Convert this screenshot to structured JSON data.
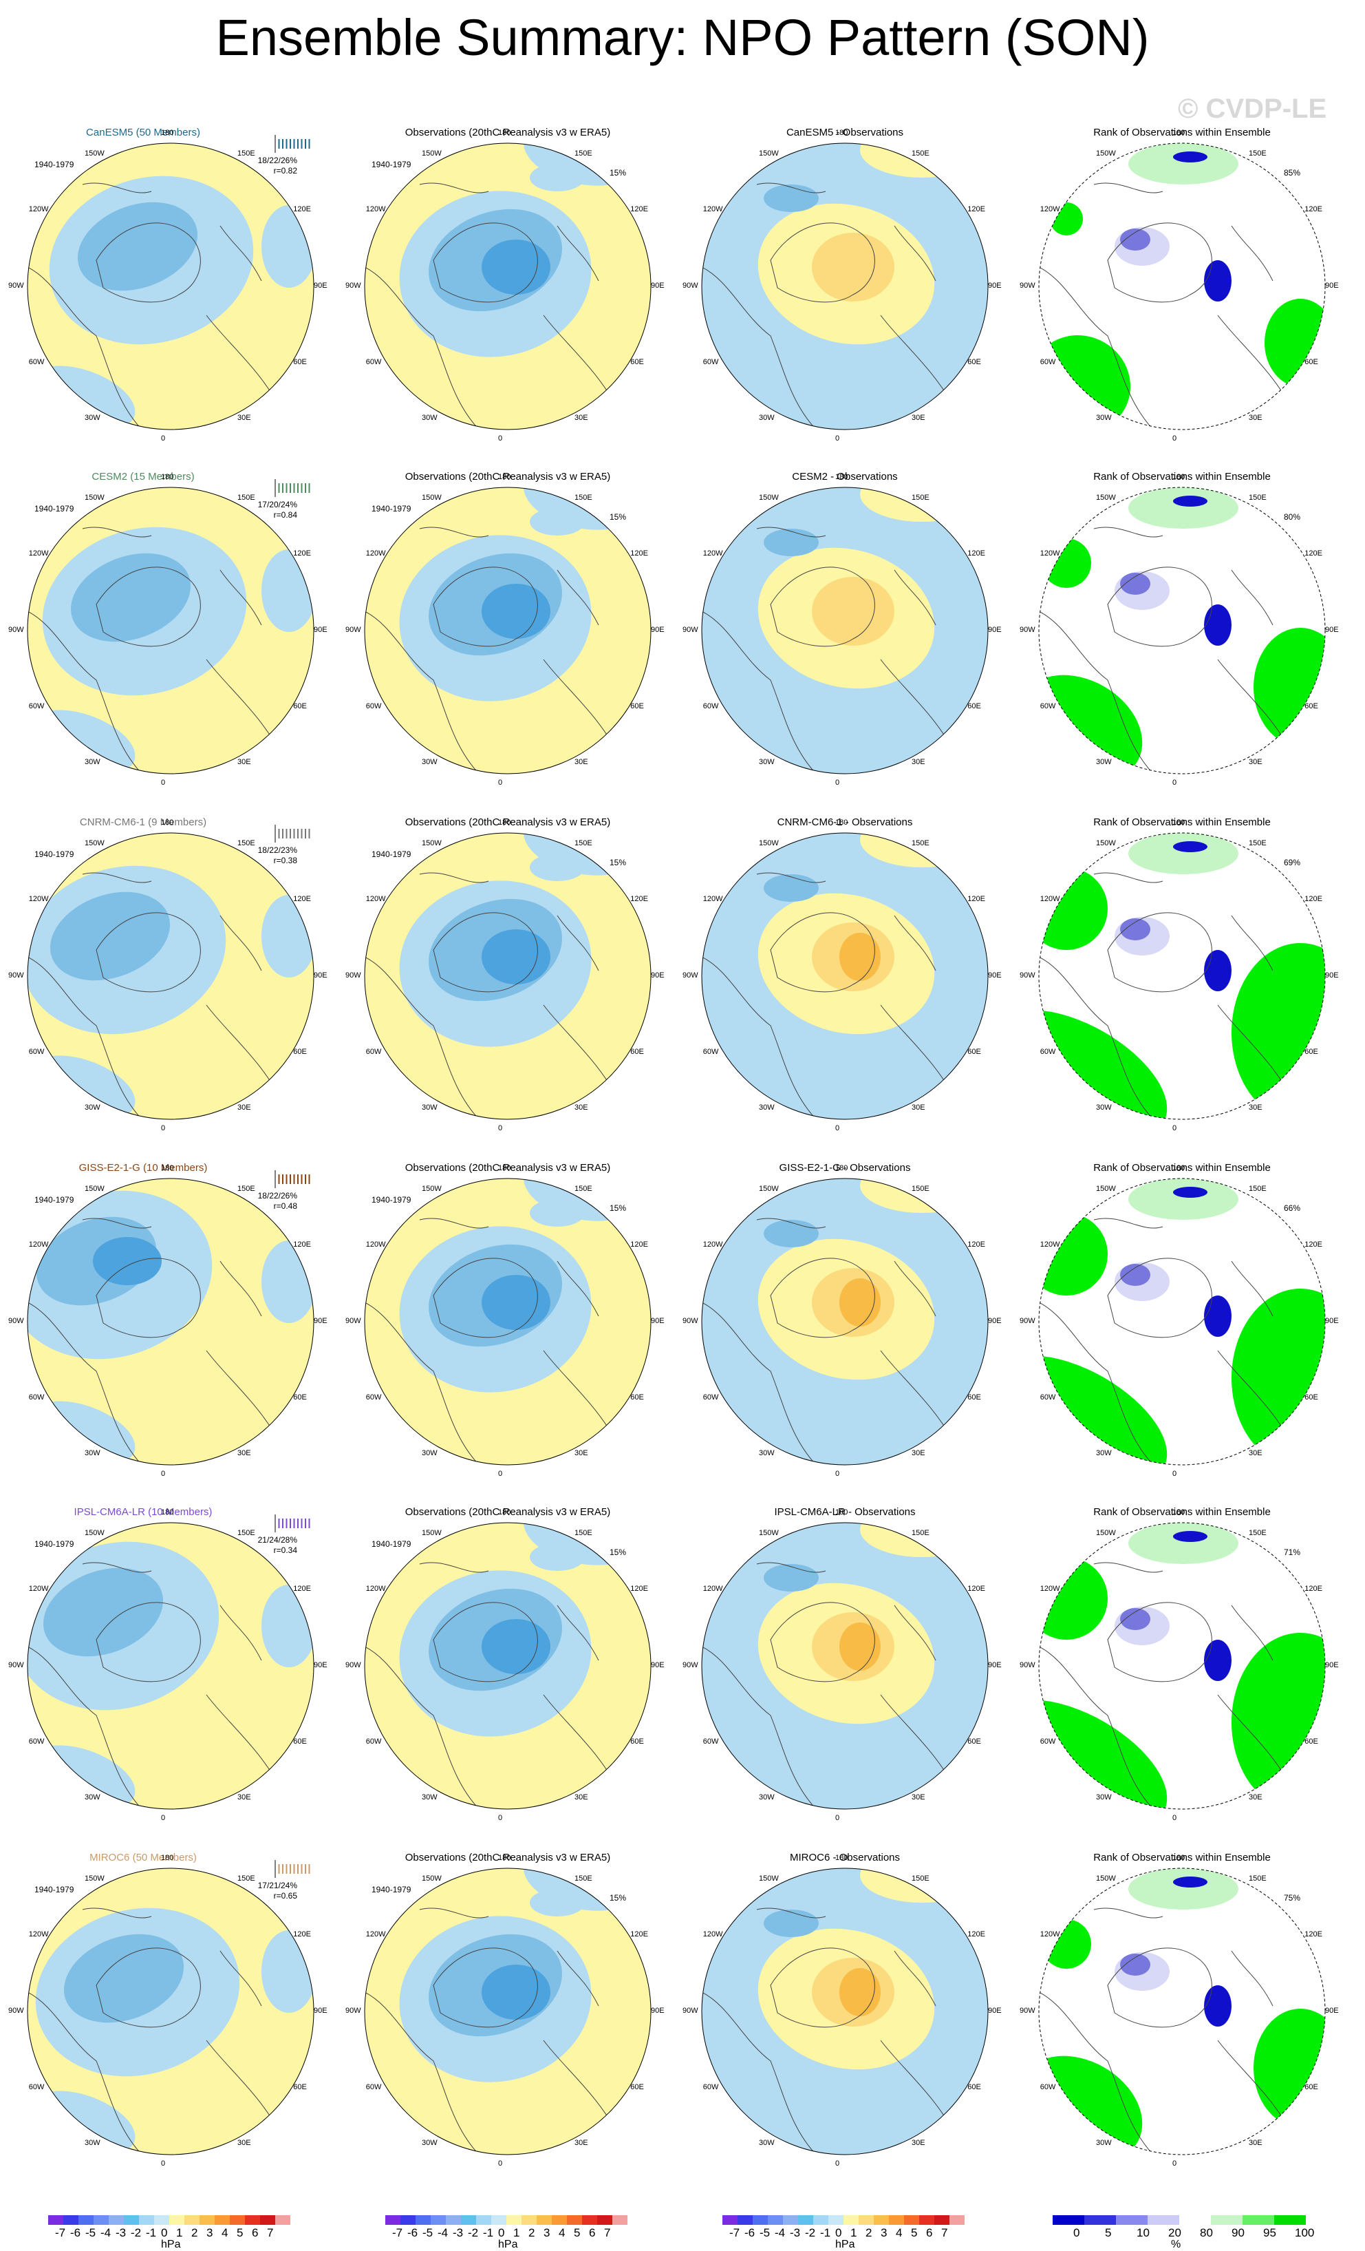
{
  "title": "Ensemble Summary: NPO Pattern (SON)",
  "watermark": "© CVDP-LE",
  "colors": {
    "yellow": "#fdf6a4",
    "lightblue": "#b3dbf2",
    "blue": "#7fbfe6",
    "midblue": "#4da3dd",
    "lightorange": "#fbdb7d",
    "orange": "#f8bb45",
    "green": "#00ee00",
    "lightgreen": "#c5f5c5",
    "paleblue": "#d8d8f7",
    "rankblue": "#1010cc",
    "midrank": "#7777dd"
  },
  "lon_labels": [
    "180",
    "150E",
    "120E",
    "90E",
    "60E",
    "30E",
    "0",
    "30W",
    "60W",
    "90W",
    "120W",
    "150W"
  ],
  "rows": [
    {
      "model": "CanESM5 (50 Members)",
      "model_color": "#1d6a8a",
      "period": "1940-1979",
      "stats": "18/22/26%",
      "r": "r=0.82",
      "obs_title": "Observations (20thC Reanalysis v3 w ERA5)",
      "obs_pct": "15%",
      "diff_title": "CanESM5 - Observations",
      "rank_title": "Rank of Observations within Ensemble",
      "rank_pct": "85%"
    },
    {
      "model": "CESM2 (15 Members)",
      "model_color": "#4e8a5e",
      "period": "1940-1979",
      "stats": "17/20/24%",
      "r": "r=0.84",
      "obs_title": "Observations (20thC Reanalysis v3 w ERA5)",
      "obs_pct": "15%",
      "diff_title": "CESM2 - Observations",
      "rank_title": "Rank of Observations within Ensemble",
      "rank_pct": "80%"
    },
    {
      "model": "CNRM-CM6-1 (9 Members)",
      "model_color": "#777777",
      "period": "1940-1979",
      "stats": "18/22/23%",
      "r": "r=0.38",
      "obs_title": "Observations (20thC Reanalysis v3 w ERA5)",
      "obs_pct": "15%",
      "diff_title": "CNRM-CM6-1 - Observations",
      "rank_title": "Rank of Observations within Ensemble",
      "rank_pct": "69%"
    },
    {
      "model": "GISS-E2-1-G (10 Members)",
      "model_color": "#8a4515",
      "period": "1940-1979",
      "stats": "18/22/26%",
      "r": "r=0.48",
      "obs_title": "Observations (20thC Reanalysis v3 w ERA5)",
      "obs_pct": "15%",
      "diff_title": "GISS-E2-1-G - Observations",
      "rank_title": "Rank of Observations within Ensemble",
      "rank_pct": "66%"
    },
    {
      "model": "IPSL-CM6A-LR (10 Members)",
      "model_color": "#7a4bd1",
      "period": "1940-1979",
      "stats": "21/24/28%",
      "r": "r=0.34",
      "obs_title": "Observations (20thC Reanalysis v3 w ERA5)",
      "obs_pct": "15%",
      "diff_title": "IPSL-CM6A-LR - Observations",
      "rank_title": "Rank of Observations within Ensemble",
      "rank_pct": "71%"
    },
    {
      "model": "MIROC6 (50 Members)",
      "model_color": "#c89a6a",
      "period": "1940-1979",
      "stats": "17/21/24%",
      "r": "r=0.65",
      "obs_title": "Observations (20thC Reanalysis v3 w ERA5)",
      "obs_pct": "15%",
      "diff_title": "MIROC6 - Observations",
      "rank_title": "Rank of Observations within Ensemble",
      "rank_pct": "75%"
    }
  ],
  "colorbar": {
    "labels": [
      "-7",
      "-6",
      "-5",
      "-4",
      "-3",
      "-2",
      "-1",
      "0",
      "1",
      "2",
      "3",
      "4",
      "5",
      "6",
      "7"
    ],
    "colors": [
      "#7b2ce0",
      "#3a3ae8",
      "#4f6ef0",
      "#6d8ef2",
      "#8cb0f3",
      "#5fc0f0",
      "#a0d8f5",
      "#c8e8f8",
      "#fdf6a4",
      "#fcdc7e",
      "#fbbd4c",
      "#f99a35",
      "#f46a2a",
      "#e83020",
      "#d41818",
      "#f4a0a0"
    ],
    "unit": "hPa",
    "rank_labels": [
      "0",
      "5",
      "10",
      "20",
      "80",
      "90",
      "95",
      "100"
    ],
    "rank_colors": [
      "#0000cc",
      "#3333dd",
      "#8888ee",
      "#ccccf6",
      "#ffffff",
      "#c8f5c8",
      "#66ee66",
      "#00dd00"
    ],
    "rank_unit": "%"
  }
}
